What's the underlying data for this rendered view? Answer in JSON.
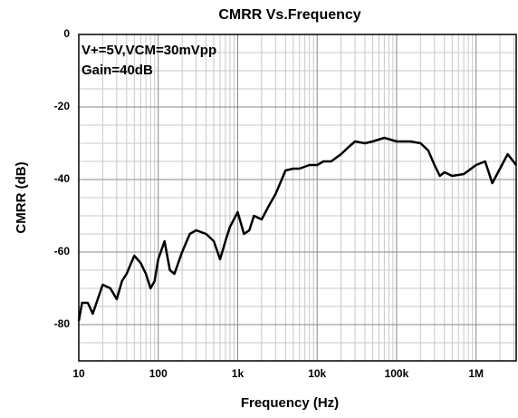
{
  "chart_data": {
    "type": "line",
    "title": "CMRR Vs.Frequency",
    "xlabel": "Frequency (Hz)",
    "ylabel": "CMRR (dB)",
    "annotations": [
      "V+=5V,VCM=30mVpp",
      "Gain=40dB"
    ],
    "xscale": "log",
    "xlim": [
      10,
      3200000
    ],
    "ylim": [
      -90,
      0
    ],
    "xticks": [
      10,
      100,
      {
        "value": 1000,
        "label": "1k"
      },
      {
        "value": 10000,
        "label": "10k"
      },
      {
        "value": 100000,
        "label": "100k"
      },
      {
        "value": 1000000,
        "label": "1M"
      }
    ],
    "yticks": [
      0,
      -20,
      -40,
      -60,
      -80
    ],
    "grid": true,
    "minor_grid": true,
    "series": [
      {
        "color": "#000000",
        "x": [
          10,
          11,
          13,
          15,
          20,
          25,
          30,
          35,
          40,
          50,
          60,
          70,
          80,
          90,
          100,
          120,
          140,
          160,
          200,
          250,
          300,
          400,
          500,
          600,
          700,
          800,
          1000,
          1200,
          1400,
          1600,
          2000,
          2500,
          3000,
          4000,
          5000,
          6000,
          8000,
          10000,
          12000,
          15000,
          20000,
          25000,
          30000,
          40000,
          50000,
          70000,
          100000,
          150000,
          200000,
          250000,
          300000,
          350000,
          400000,
          500000,
          700000,
          1000000,
          1300000,
          1600000,
          2000000,
          2500000,
          3200000
        ],
        "values": [
          -79,
          -74,
          -74,
          -77,
          -69,
          -70,
          -73,
          -68,
          -66,
          -61,
          -63,
          -66,
          -70,
          -68,
          -62,
          -57,
          -65,
          -66,
          -60,
          -55,
          -54,
          -55,
          -57,
          -62,
          -57,
          -53,
          -49,
          -55,
          -54,
          -50,
          -51,
          -47,
          -44,
          -37.5,
          -37,
          -37,
          -36,
          -36,
          -35,
          -35,
          -33,
          -31,
          -29.5,
          -30,
          -29.5,
          -28.5,
          -29.5,
          -29.5,
          -30,
          -32,
          -36,
          -39,
          -38,
          -39,
          -38.5,
          -36,
          -35,
          -41,
          -37,
          -33,
          -36
        ]
      }
    ]
  }
}
